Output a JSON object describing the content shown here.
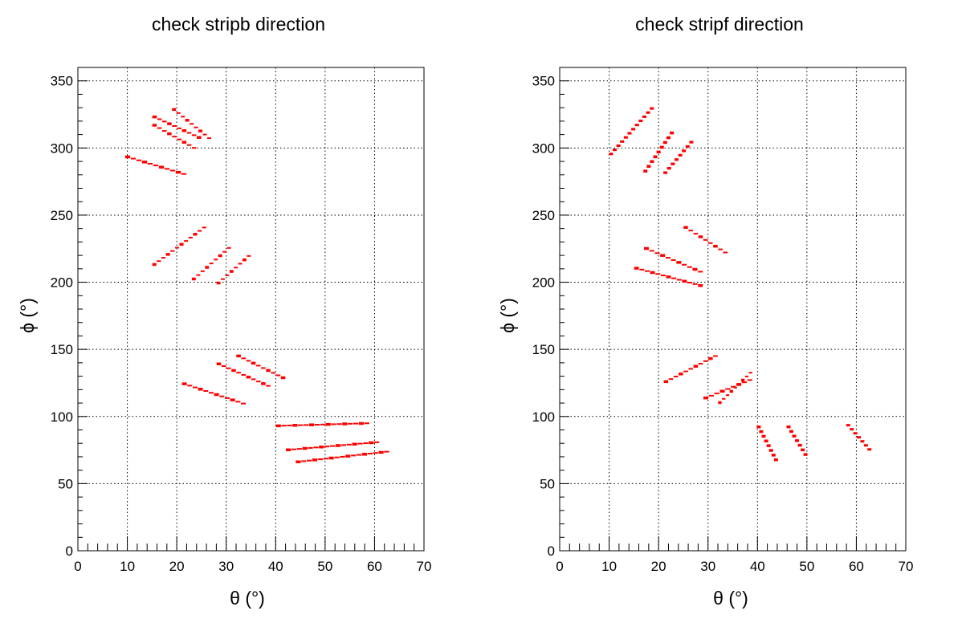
{
  "chart_data": [
    {
      "type": "heatmap",
      "title": "check stripb direction",
      "xlabel": "θ (°)",
      "ylabel": "ϕ (°)",
      "xlim": [
        0,
        70
      ],
      "ylim": [
        0,
        360
      ],
      "xticks": [
        0,
        10,
        20,
        30,
        40,
        50,
        60,
        70
      ],
      "yticks": [
        0,
        50,
        100,
        150,
        200,
        250,
        300,
        350
      ],
      "grid": true,
      "color": "#ff0000",
      "segments": [
        {
          "from": [
            15,
            324
          ],
          "to": [
            25,
            307
          ]
        },
        {
          "from": [
            15,
            318
          ],
          "to": [
            24,
            299
          ]
        },
        {
          "from": [
            19,
            330
          ],
          "to": [
            27,
            306
          ]
        },
        {
          "from": [
            9.5,
            294
          ],
          "to": [
            22,
            280
          ]
        },
        {
          "from": [
            15,
            212
          ],
          "to": [
            26,
            242
          ]
        },
        {
          "from": [
            23,
            201
          ],
          "to": [
            31,
            227
          ]
        },
        {
          "from": [
            28,
            198
          ],
          "to": [
            35,
            221
          ]
        },
        {
          "from": [
            21,
            125
          ],
          "to": [
            34,
            109
          ]
        },
        {
          "from": [
            28,
            140
          ],
          "to": [
            39,
            122
          ]
        },
        {
          "from": [
            32,
            146
          ],
          "to": [
            42,
            128
          ]
        },
        {
          "from": [
            40,
            93
          ],
          "to": [
            59,
            95
          ]
        },
        {
          "from": [
            42,
            75
          ],
          "to": [
            61,
            81
          ]
        },
        {
          "from": [
            44,
            66
          ],
          "to": [
            63,
            74
          ]
        }
      ]
    },
    {
      "type": "heatmap",
      "title": "check stripf direction",
      "xlabel": "θ (°)",
      "ylabel": "ϕ (°)",
      "xlim": [
        0,
        70
      ],
      "ylim": [
        0,
        360
      ],
      "xticks": [
        0,
        10,
        20,
        30,
        40,
        50,
        60,
        70
      ],
      "yticks": [
        0,
        50,
        100,
        150,
        200,
        250,
        300,
        350
      ],
      "grid": true,
      "color": "#ff0000",
      "segments": [
        {
          "from": [
            10,
            294
          ],
          "to": [
            19,
            331
          ]
        },
        {
          "from": [
            17,
            281
          ],
          "to": [
            23,
            313
          ]
        },
        {
          "from": [
            21,
            280
          ],
          "to": [
            27,
            306
          ]
        },
        {
          "from": [
            15,
            211
          ],
          "to": [
            29,
            197
          ]
        },
        {
          "from": [
            17,
            226
          ],
          "to": [
            29,
            207
          ]
        },
        {
          "from": [
            25,
            242
          ],
          "to": [
            34,
            221
          ]
        },
        {
          "from": [
            21,
            125
          ],
          "to": [
            32,
            146
          ]
        },
        {
          "from": [
            29,
            113
          ],
          "to": [
            39,
            128
          ]
        },
        {
          "from": [
            32,
            109
          ],
          "to": [
            39,
            134
          ]
        },
        {
          "from": [
            40,
            94
          ],
          "to": [
            44,
            66
          ]
        },
        {
          "from": [
            46,
            94
          ],
          "to": [
            50,
            70
          ]
        },
        {
          "from": [
            58,
            95
          ],
          "to": [
            63,
            74
          ]
        }
      ]
    }
  ]
}
